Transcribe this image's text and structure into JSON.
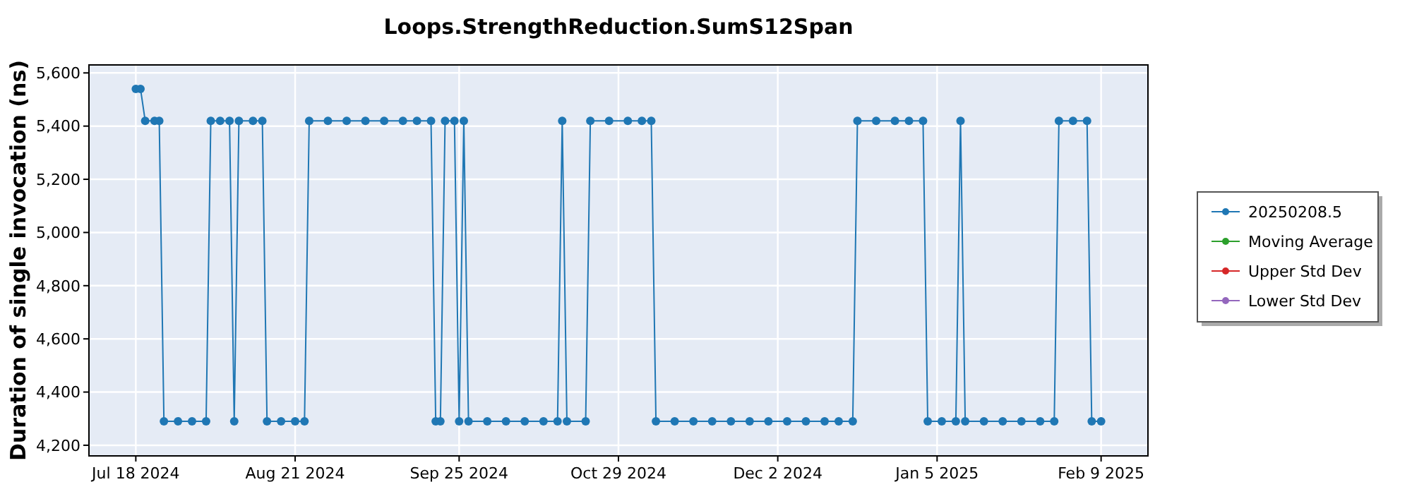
{
  "chart_data": {
    "type": "line",
    "title": "Loops.StrengthReduction.SumS12Span",
    "ylabel": "Duration of single invocation (ns)",
    "xlim": [
      "2024-07-08",
      "2025-02-19"
    ],
    "xticks": [
      {
        "value": "2024-07-18",
        "label": "Jul 18 2024"
      },
      {
        "value": "2024-08-21",
        "label": "Aug 21 2024"
      },
      {
        "value": "2024-09-25",
        "label": "Sep 25 2024"
      },
      {
        "value": "2024-10-29",
        "label": "Oct 29 2024"
      },
      {
        "value": "2024-12-02",
        "label": "Dec 2 2024"
      },
      {
        "value": "2025-01-05",
        "label": "Jan 5 2025"
      },
      {
        "value": "2025-02-09",
        "label": "Feb 9 2025"
      }
    ],
    "ylim": [
      4160,
      5630
    ],
    "yticks": [
      {
        "value": 4200,
        "label": "4,200"
      },
      {
        "value": 4400,
        "label": "4,400"
      },
      {
        "value": 4600,
        "label": "4,600"
      },
      {
        "value": 4800,
        "label": "4,800"
      },
      {
        "value": 5000,
        "label": "5,000"
      },
      {
        "value": 5200,
        "label": "5,200"
      },
      {
        "value": 5400,
        "label": "5,400"
      },
      {
        "value": 5600,
        "label": "5,600"
      }
    ],
    "grid": true,
    "legend": "right",
    "marker": "circle",
    "series": [
      {
        "name": "20250208.5",
        "color": "#1f77b4",
        "x": [
          "2024-07-18",
          "2024-07-19",
          "2024-07-20",
          "2024-07-22",
          "2024-07-23",
          "2024-07-24",
          "2024-07-27",
          "2024-07-30",
          "2024-08-02",
          "2024-08-03",
          "2024-08-05",
          "2024-08-07",
          "2024-08-08",
          "2024-08-09",
          "2024-08-12",
          "2024-08-14",
          "2024-08-15",
          "2024-08-18",
          "2024-08-21",
          "2024-08-23",
          "2024-08-24",
          "2024-08-28",
          "2024-09-01",
          "2024-09-05",
          "2024-09-09",
          "2024-09-13",
          "2024-09-16",
          "2024-09-19",
          "2024-09-20",
          "2024-09-21",
          "2024-09-22",
          "2024-09-24",
          "2024-09-25",
          "2024-09-26",
          "2024-09-27",
          "2024-10-01",
          "2024-10-05",
          "2024-10-09",
          "2024-10-13",
          "2024-10-16",
          "2024-10-17",
          "2024-10-18",
          "2024-10-22",
          "2024-10-23",
          "2024-10-27",
          "2024-10-31",
          "2024-11-03",
          "2024-11-05",
          "2024-11-06",
          "2024-11-10",
          "2024-11-14",
          "2024-11-18",
          "2024-11-22",
          "2024-11-26",
          "2024-11-30",
          "2024-12-04",
          "2024-12-08",
          "2024-12-12",
          "2024-12-15",
          "2024-12-18",
          "2024-12-19",
          "2024-12-23",
          "2024-12-27",
          "2024-12-30",
          "2025-01-02",
          "2025-01-03",
          "2025-01-06",
          "2025-01-09",
          "2025-01-10",
          "2025-01-11",
          "2025-01-15",
          "2025-01-19",
          "2025-01-23",
          "2025-01-27",
          "2025-01-30",
          "2025-01-31",
          "2025-02-03",
          "2025-02-06",
          "2025-02-07",
          "2025-02-09"
        ],
        "values": [
          5540,
          5540,
          5420,
          5420,
          5420,
          4290,
          4290,
          4290,
          4290,
          5420,
          5420,
          5420,
          4290,
          5420,
          5420,
          5420,
          4290,
          4290,
          4290,
          4290,
          5420,
          5420,
          5420,
          5420,
          5420,
          5420,
          5420,
          5420,
          4290,
          4290,
          5420,
          5420,
          4290,
          5420,
          4290,
          4290,
          4290,
          4290,
          4290,
          4290,
          5420,
          4290,
          4290,
          5420,
          5420,
          5420,
          5420,
          5420,
          4290,
          4290,
          4290,
          4290,
          4290,
          4290,
          4290,
          4290,
          4290,
          4290,
          4290,
          4290,
          5420,
          5420,
          5420,
          5420,
          5420,
          4290,
          4290,
          4290,
          5420,
          4290,
          4290,
          4290,
          4290,
          4290,
          4290,
          5420,
          5420,
          5420,
          4290,
          4290
        ]
      },
      {
        "name": "Moving Average",
        "color": "#2ca02c"
      },
      {
        "name": "Upper Std Dev",
        "color": "#d62728"
      },
      {
        "name": "Lower Std Dev",
        "color": "#9467bd"
      }
    ]
  }
}
